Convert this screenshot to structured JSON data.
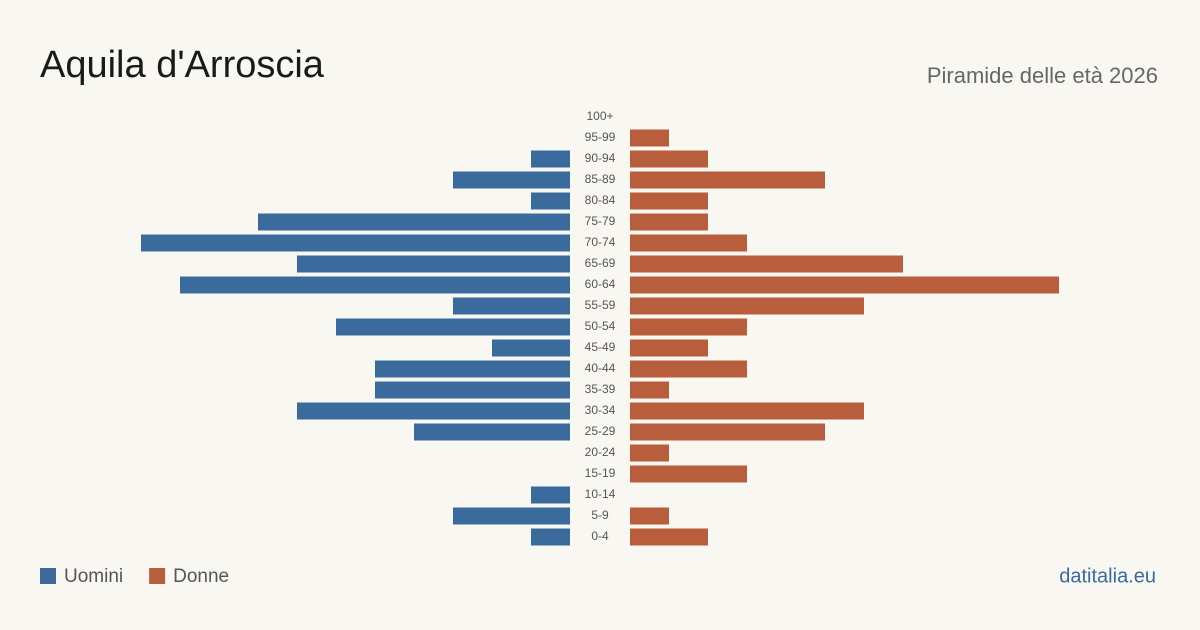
{
  "chart_data": {
    "type": "pyramid",
    "title": "Aquila d'Arroscia",
    "subtitle": "Piramide delle età 2026",
    "source": "datitalia.eu",
    "categories": [
      "100+",
      "95-99",
      "90-94",
      "85-89",
      "80-84",
      "75-79",
      "70-74",
      "65-69",
      "60-64",
      "55-59",
      "50-54",
      "45-49",
      "40-44",
      "35-39",
      "30-34",
      "25-29",
      "20-24",
      "15-19",
      "10-14",
      "5-9",
      "0-4"
    ],
    "series": [
      {
        "name": "Uomini",
        "color": "#3a6b9c",
        "values": [
          0,
          0,
          1,
          3,
          1,
          8,
          11,
          7,
          10,
          3,
          6,
          2,
          5,
          5,
          7,
          4,
          0,
          0,
          1,
          3,
          1
        ]
      },
      {
        "name": "Donne",
        "color": "#b95e3d",
        "values": [
          0,
          1,
          2,
          5,
          2,
          2,
          3,
          7,
          11,
          6,
          3,
          2,
          3,
          1,
          6,
          5,
          1,
          3,
          0,
          1,
          2
        ]
      }
    ]
  }
}
